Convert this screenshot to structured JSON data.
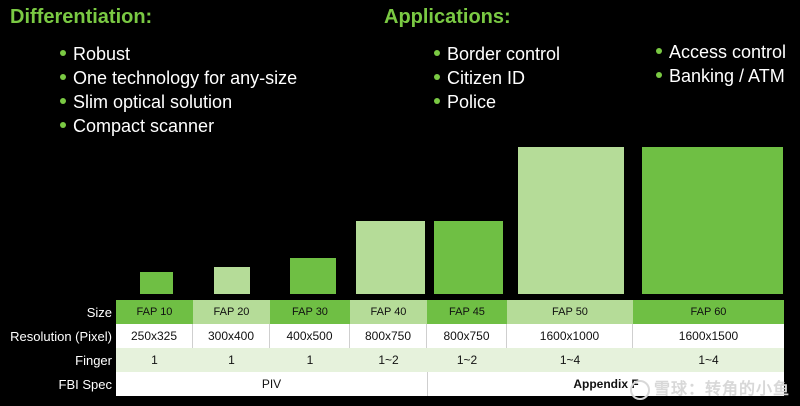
{
  "differentiation": {
    "title": "Differentiation:",
    "items": [
      "Robust",
      "One technology for any-size",
      "Slim optical solution",
      "Compact scanner"
    ]
  },
  "applications": {
    "title": "Applications:",
    "col1": [
      "Border control",
      "Citizen ID",
      "Police"
    ],
    "col2": [
      "Access control",
      "Banking / ATM"
    ]
  },
  "table": {
    "row_labels": {
      "size": "Size",
      "resolution": "Resolution (Pixel)",
      "finger": "Finger",
      "fbi": "FBI Spec"
    },
    "sizes": [
      "FAP 10",
      "FAP 20",
      "FAP 30",
      "FAP 40",
      "FAP 45",
      "FAP 50",
      "FAP 60"
    ],
    "resolutions": [
      "250x325",
      "300x400",
      "400x500",
      "800x750",
      "800x750",
      "1600x1000",
      "1600x1500"
    ],
    "fingers": [
      "1",
      "1",
      "1",
      "1~2",
      "1~2",
      "1~4",
      "1~4"
    ],
    "fbi": [
      "PIV",
      "Appendix F"
    ]
  },
  "watermark": "雪球：转角的小鱼",
  "colors": {
    "accent_green": "#7ac943",
    "dark_green": "#6fbf44",
    "light_green": "#b5dc98"
  }
}
